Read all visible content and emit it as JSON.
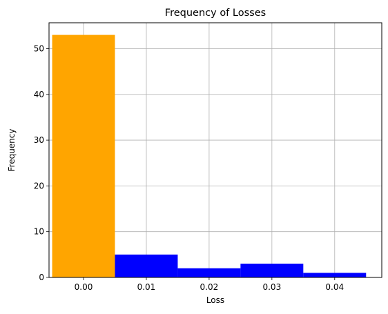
{
  "chart_data": {
    "type": "bar",
    "title": "Frequency of Losses",
    "xlabel": "Loss",
    "ylabel": "Frequency",
    "categories": [
      "0.00",
      "0.01",
      "0.02",
      "0.03",
      "0.04"
    ],
    "x": [
      0.0,
      0.01,
      0.02,
      0.03,
      0.04
    ],
    "bar_width": 0.01,
    "values": [
      53,
      5,
      2,
      3,
      1
    ],
    "bar_colors": [
      "#ffa500",
      "#0000ff",
      "#0000ff",
      "#0000ff",
      "#0000ff"
    ],
    "xlim": [
      -0.0055,
      0.0475
    ],
    "ylim": [
      0,
      55.65
    ],
    "xticks": [
      0.0,
      0.01,
      0.02,
      0.03,
      0.04
    ],
    "xtick_labels": [
      "0.00",
      "0.01",
      "0.02",
      "0.03",
      "0.04"
    ],
    "yticks": [
      0,
      10,
      20,
      30,
      40,
      50
    ],
    "ytick_labels": [
      "0",
      "10",
      "20",
      "30",
      "40",
      "50"
    ],
    "grid": true,
    "grid_color": "#b0b0b0",
    "legend": "none"
  }
}
